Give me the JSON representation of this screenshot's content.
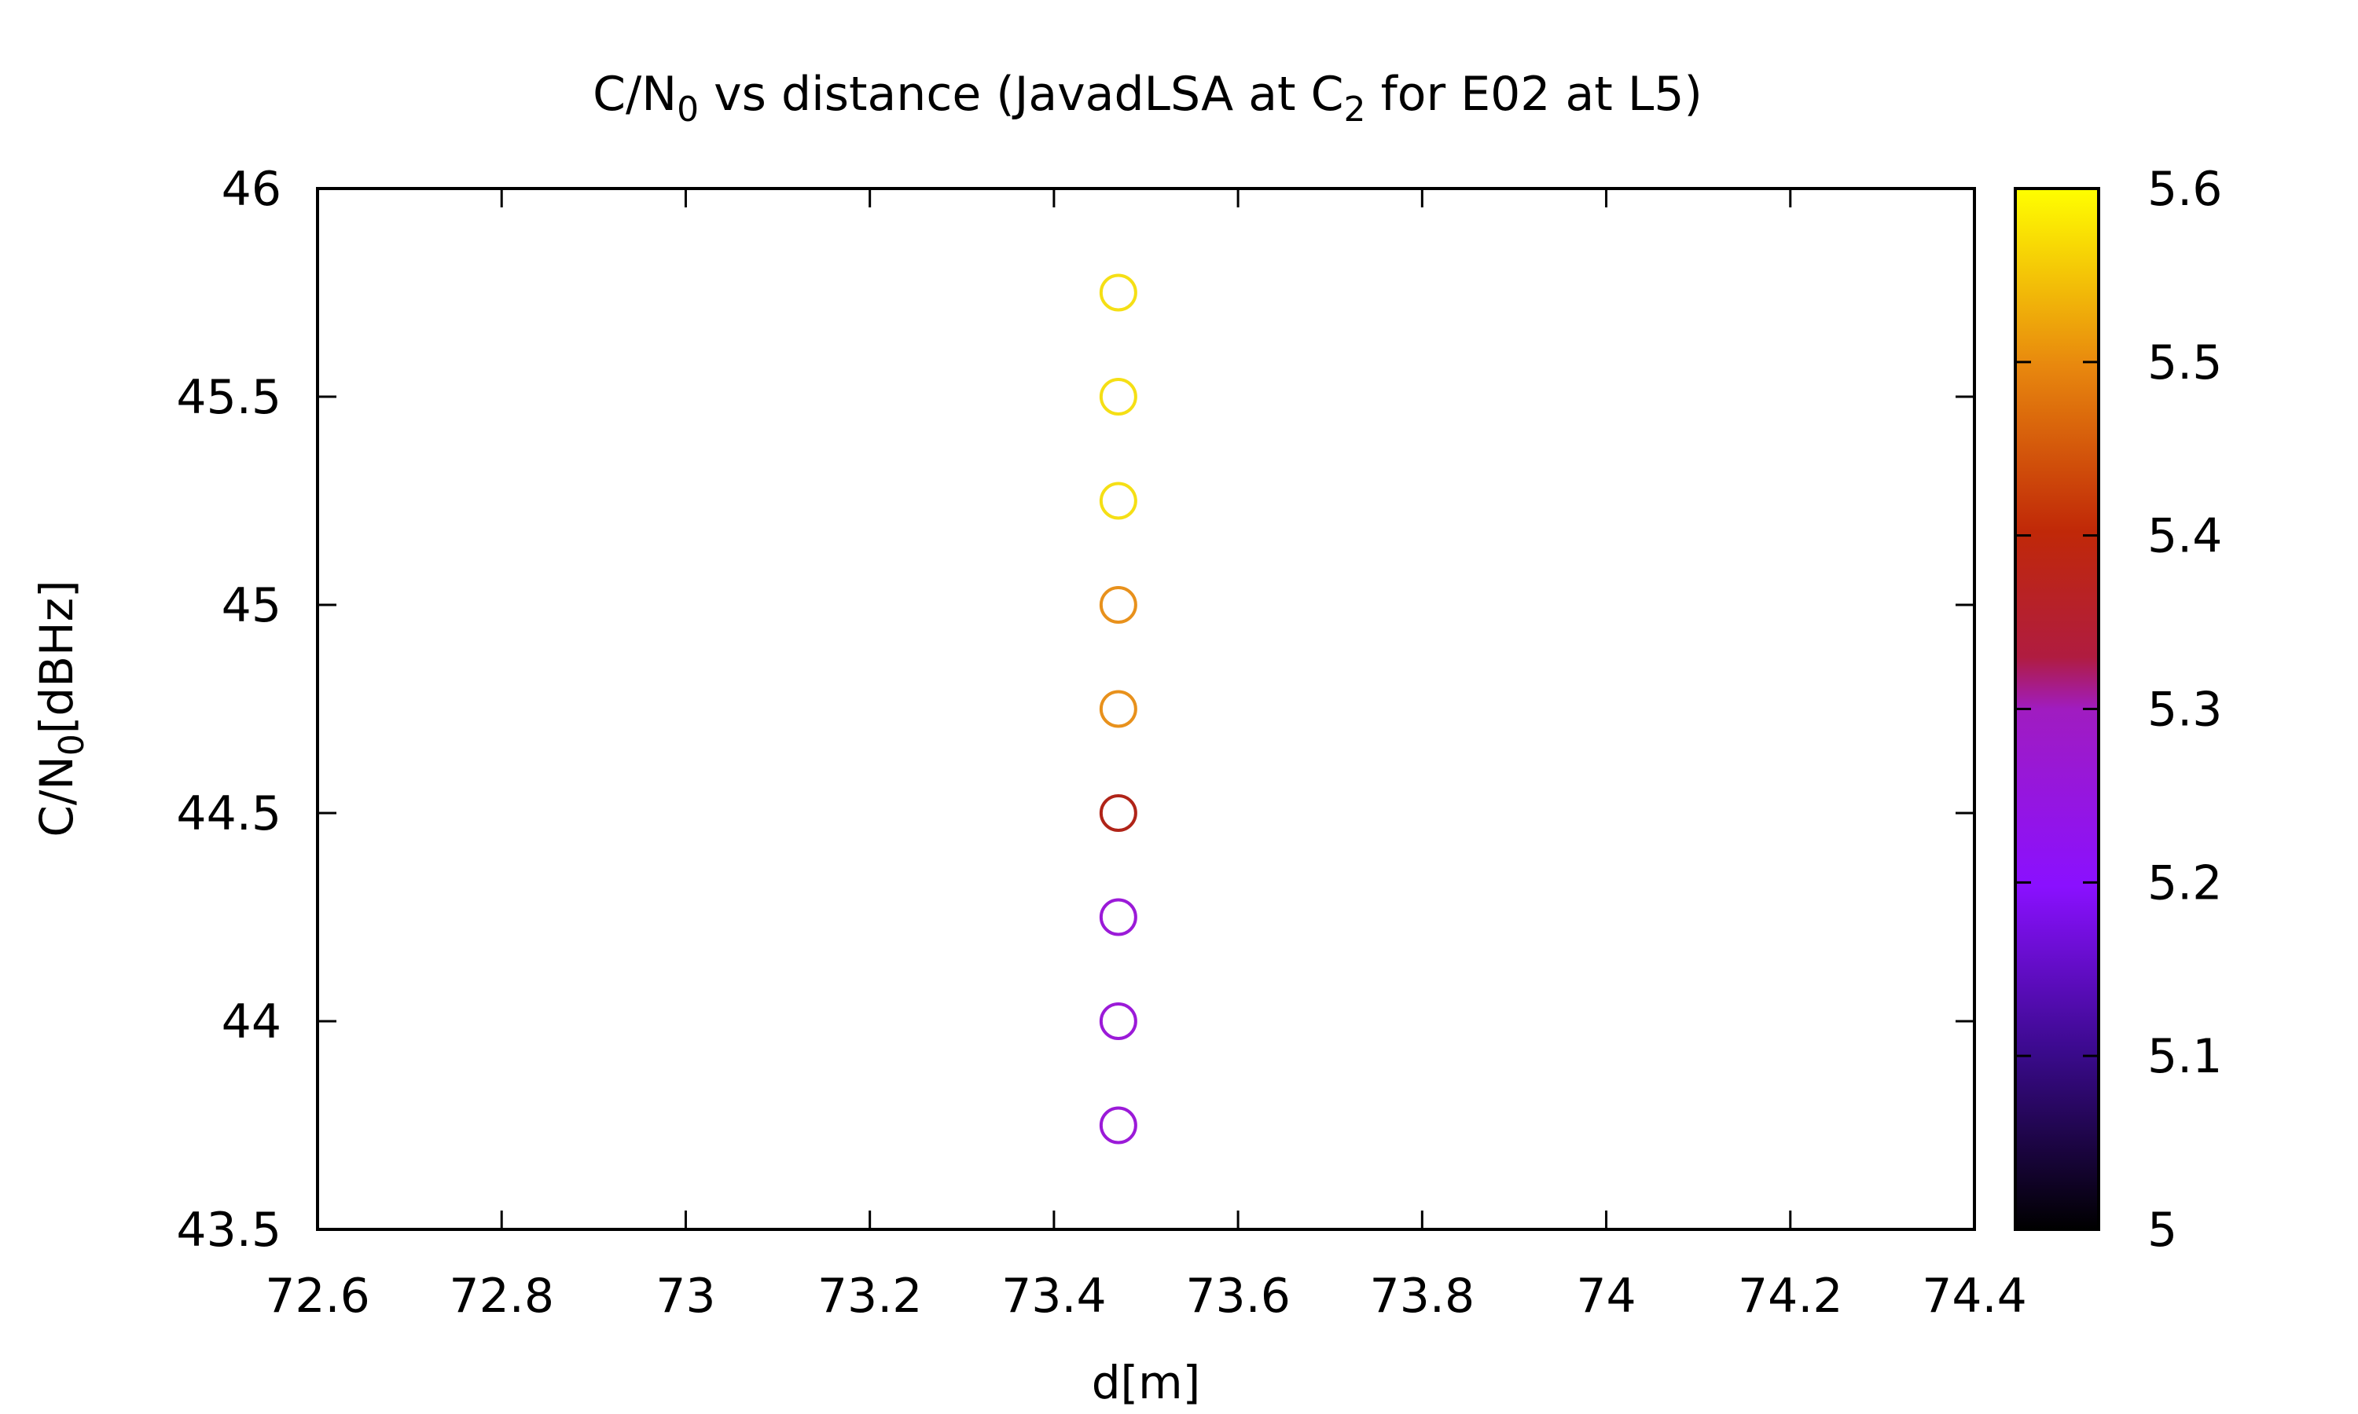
{
  "chart_data": {
    "type": "scatter",
    "title": {
      "main": "C/N",
      "sub": "0",
      "middle": " vs distance (JavadLSA at C",
      "sub2": "2",
      "tail": " for E02 at L5)"
    },
    "xlabel": "d[m]",
    "ylabel": {
      "main": "C/N",
      "sub": "0",
      "tail": "[dBHz]"
    },
    "xlim": [
      72.6,
      74.4
    ],
    "ylim": [
      43.5,
      46
    ],
    "xticks": [
      {
        "v": 72.6,
        "label": "72.6"
      },
      {
        "v": 72.8,
        "label": "72.8"
      },
      {
        "v": 73.0,
        "label": "73"
      },
      {
        "v": 73.2,
        "label": "73.2"
      },
      {
        "v": 73.4,
        "label": "73.4"
      },
      {
        "v": 73.6,
        "label": "73.6"
      },
      {
        "v": 73.8,
        "label": "73.8"
      },
      {
        "v": 74.0,
        "label": "74"
      },
      {
        "v": 74.2,
        "label": "74.2"
      },
      {
        "v": 74.4,
        "label": "74.4"
      }
    ],
    "yticks": [
      {
        "v": 43.5,
        "label": "43.5"
      },
      {
        "v": 44.0,
        "label": "44"
      },
      {
        "v": 44.5,
        "label": "44.5"
      },
      {
        "v": 45.0,
        "label": "45"
      },
      {
        "v": 45.5,
        "label": "45.5"
      },
      {
        "v": 46.0,
        "label": "46"
      }
    ],
    "colorbar": {
      "range": [
        5.0,
        5.6
      ],
      "ticks": [
        {
          "v": 5.0,
          "label": "5"
        },
        {
          "v": 5.1,
          "label": "5.1"
        },
        {
          "v": 5.2,
          "label": "5.2"
        },
        {
          "v": 5.3,
          "label": "5.3"
        },
        {
          "v": 5.4,
          "label": "5.4"
        },
        {
          "v": 5.5,
          "label": "5.5"
        },
        {
          "v": 5.6,
          "label": "5.6"
        }
      ]
    },
    "points": [
      {
        "x": 73.47,
        "y": 45.75,
        "c": 5.58,
        "color": "#f5df15"
      },
      {
        "x": 73.47,
        "y": 45.5,
        "c": 5.58,
        "color": "#f5df15"
      },
      {
        "x": 73.47,
        "y": 45.25,
        "c": 5.58,
        "color": "#f5df15"
      },
      {
        "x": 73.47,
        "y": 45.0,
        "c": 5.5,
        "color": "#e8911c"
      },
      {
        "x": 73.47,
        "y": 44.75,
        "c": 5.5,
        "color": "#e8911c"
      },
      {
        "x": 73.47,
        "y": 44.5,
        "c": 5.3,
        "color": "#b02418"
      },
      {
        "x": 73.47,
        "y": 44.25,
        "c": 5.2,
        "color": "#9b1ad8"
      },
      {
        "x": 73.47,
        "y": 44.0,
        "c": 5.2,
        "color": "#9b1ad8"
      },
      {
        "x": 73.47,
        "y": 43.75,
        "c": 5.2,
        "color": "#9b1ad8"
      }
    ]
  }
}
